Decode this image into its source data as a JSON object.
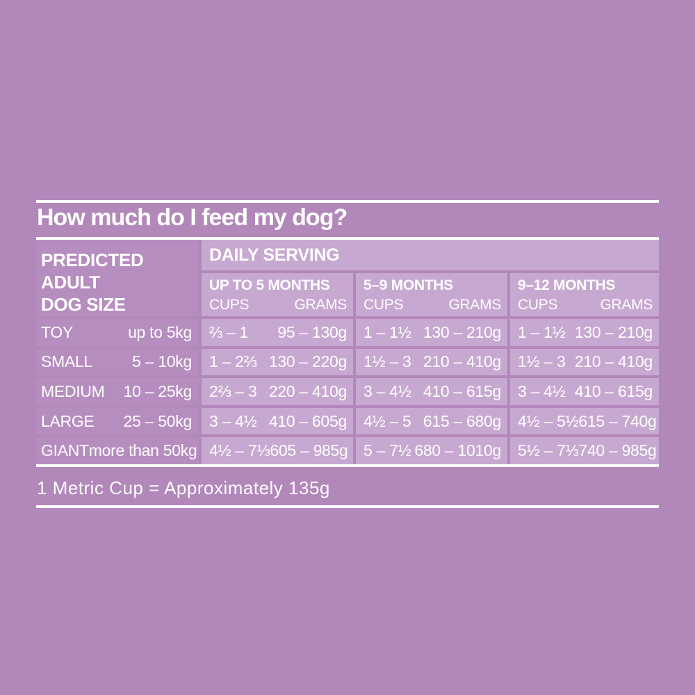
{
  "colors": {
    "background": "#b287ba",
    "cell_dark": "#b68dbf",
    "cell_light": "#c7a8d0",
    "text": "#ffffff"
  },
  "title": "How much do I feed my dog?",
  "table": {
    "size_header": "PREDICTED\nADULT\nDOG SIZE",
    "daily_serving_label": "DAILY SERVING",
    "cups_label": "CUPS",
    "grams_label": "GRAMS",
    "age_groups": [
      "UP TO 5 MONTHS",
      "5–9 MONTHS",
      "9–12 MONTHS"
    ],
    "rows": [
      {
        "size": "TOY",
        "weight": "up to 5kg",
        "servings": [
          {
            "cups": "⅔ – 1",
            "grams": "95 – 130g"
          },
          {
            "cups": "1 – 1½",
            "grams": "130 – 210g"
          },
          {
            "cups": "1 – 1½",
            "grams": "130 – 210g"
          }
        ]
      },
      {
        "size": "SMALL",
        "weight": "5 – 10kg",
        "servings": [
          {
            "cups": "1 – 2⅔",
            "grams": "130 – 220g"
          },
          {
            "cups": "1½ – 3",
            "grams": "210 – 410g"
          },
          {
            "cups": "1½ – 3",
            "grams": "210 – 410g"
          }
        ]
      },
      {
        "size": "MEDIUM",
        "weight": "10 – 25kg",
        "servings": [
          {
            "cups": "2⅔ – 3",
            "grams": "220 – 410g"
          },
          {
            "cups": "3 – 4½",
            "grams": "410 – 615g"
          },
          {
            "cups": "3 – 4½",
            "grams": "410 – 615g"
          }
        ]
      },
      {
        "size": "LARGE",
        "weight": "25 – 50kg",
        "servings": [
          {
            "cups": "3 – 4½",
            "grams": "410 – 605g"
          },
          {
            "cups": "4½ – 5",
            "grams": "615 – 680g"
          },
          {
            "cups": "4½ – 5½",
            "grams": "615 – 740g"
          }
        ]
      },
      {
        "size": "GIANT",
        "weight": "more than 50kg",
        "servings": [
          {
            "cups": "4½ – 7⅓",
            "grams": "605 – 985g"
          },
          {
            "cups": "5 – 7½",
            "grams": "680 – 1010g"
          },
          {
            "cups": "5½ – 7⅓",
            "grams": "740 – 985g"
          }
        ]
      }
    ]
  },
  "footnote": "1 Metric Cup = Approximately 135g"
}
